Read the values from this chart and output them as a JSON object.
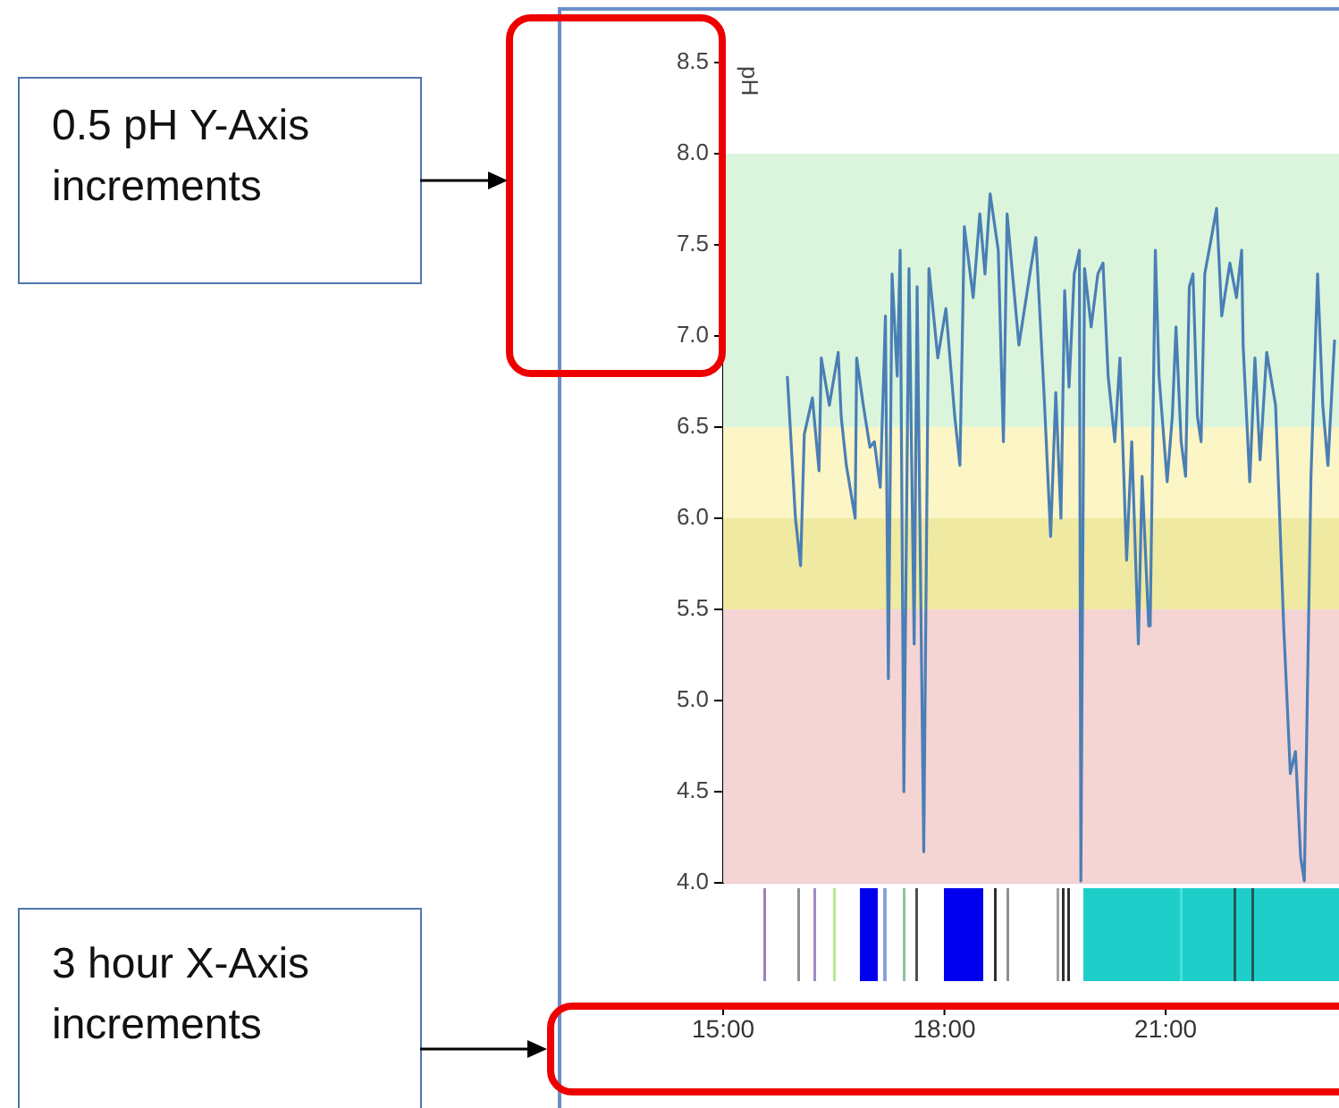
{
  "chart_data": {
    "type": "line",
    "ylabel": "pH",
    "annotations": [
      "0.5 pH Y-Axis increments",
      "3 hour X-Axis increments"
    ],
    "x": [
      15.87,
      15.98,
      16.05,
      16.1,
      16.21,
      16.3,
      16.33,
      16.44,
      16.56,
      16.6,
      16.67,
      16.79,
      16.81,
      16.9,
      16.99,
      17.05,
      17.13,
      17.2,
      17.24,
      17.29,
      17.36,
      17.4,
      17.45,
      17.52,
      17.59,
      17.63,
      17.72,
      17.79,
      17.91,
      18.02,
      18.14,
      18.21,
      18.25,
      18.27,
      18.39,
      18.48,
      18.55,
      18.62,
      18.73,
      18.8,
      18.85,
      19.01,
      19.17,
      19.24,
      19.35,
      19.44,
      19.51,
      19.58,
      19.63,
      19.69,
      19.76,
      19.83,
      19.85,
      19.9,
      19.99,
      20.08,
      20.15,
      20.22,
      20.31,
      20.38,
      20.47,
      20.54,
      20.63,
      20.68,
      20.77,
      20.79,
      20.86,
      20.91,
      21.02,
      21.09,
      21.14,
      21.21,
      21.27,
      21.32,
      21.37,
      21.43,
      21.48,
      21.53,
      21.62,
      21.69,
      21.76,
      21.87,
      21.96,
      22.03,
      22.05,
      22.14,
      22.21,
      22.28,
      22.37,
      22.49,
      22.6,
      22.69,
      22.76,
      22.83,
      22.88,
      22.97,
      23.06,
      23.13,
      23.2,
      23.29
    ],
    "series": [
      {
        "color": "#4a7fb5",
        "values": [
          6.78,
          6.0,
          5.74,
          6.46,
          6.66,
          6.26,
          6.88,
          6.62,
          6.91,
          6.56,
          6.29,
          6.0,
          6.88,
          6.62,
          6.39,
          6.42,
          6.17,
          7.11,
          5.12,
          7.34,
          6.78,
          7.47,
          4.5,
          7.37,
          5.31,
          7.27,
          4.17,
          7.37,
          6.88,
          7.15,
          6.56,
          6.29,
          7.15,
          7.6,
          7.21,
          7.67,
          7.34,
          7.78,
          7.47,
          6.42,
          7.67,
          6.95,
          7.37,
          7.54,
          6.69,
          5.9,
          6.69,
          6.0,
          7.25,
          6.72,
          7.34,
          7.47,
          4.01,
          7.37,
          7.05,
          7.34,
          7.4,
          6.78,
          6.42,
          6.88,
          5.77,
          6.42,
          5.31,
          6.23,
          5.41,
          5.41,
          7.47,
          6.78,
          6.2,
          6.56,
          7.05,
          6.42,
          6.23,
          7.27,
          7.34,
          6.56,
          6.42,
          7.34,
          7.54,
          7.7,
          7.11,
          7.4,
          7.21,
          7.47,
          6.95,
          6.2,
          6.88,
          6.32,
          6.91,
          6.62,
          5.41,
          4.6,
          4.72,
          4.14,
          4.01,
          6.23,
          7.34,
          6.62,
          6.29,
          6.98
        ]
      }
    ],
    "xlim": [
      15,
      23.35
    ],
    "xticks": [
      {
        "value": 15,
        "label": "15:00"
      },
      {
        "value": 18,
        "label": "18:00"
      },
      {
        "value": 21,
        "label": "21:00"
      }
    ],
    "ylim": [
      4,
      8.5
    ],
    "yticks": [
      {
        "value": 4,
        "label": "4.0"
      },
      {
        "value": 4.5,
        "label": "4.5"
      },
      {
        "value": 5,
        "label": "5.0"
      },
      {
        "value": 5.5,
        "label": "5.5"
      },
      {
        "value": 6,
        "label": "6.0"
      },
      {
        "value": 6.5,
        "label": "6.5"
      },
      {
        "value": 7,
        "label": "7.0"
      },
      {
        "value": 7.5,
        "label": "7.5"
      },
      {
        "value": 8,
        "label": "8.0"
      },
      {
        "value": 8.5,
        "label": "8.5"
      }
    ],
    "marker": "none",
    "bands": [
      {
        "axis": "y",
        "from": 6.5,
        "to": 8.0,
        "color": "#dbf5dc"
      },
      {
        "axis": "y",
        "from": 6.0,
        "to": 6.5,
        "color": "#fcf5c6"
      },
      {
        "axis": "y",
        "from": 5.5,
        "to": 6.0,
        "color": "#efe9a2"
      },
      {
        "axis": "y",
        "from": 4.0,
        "to": 5.5,
        "color": "#f5d4d4"
      }
    ]
  }
}
